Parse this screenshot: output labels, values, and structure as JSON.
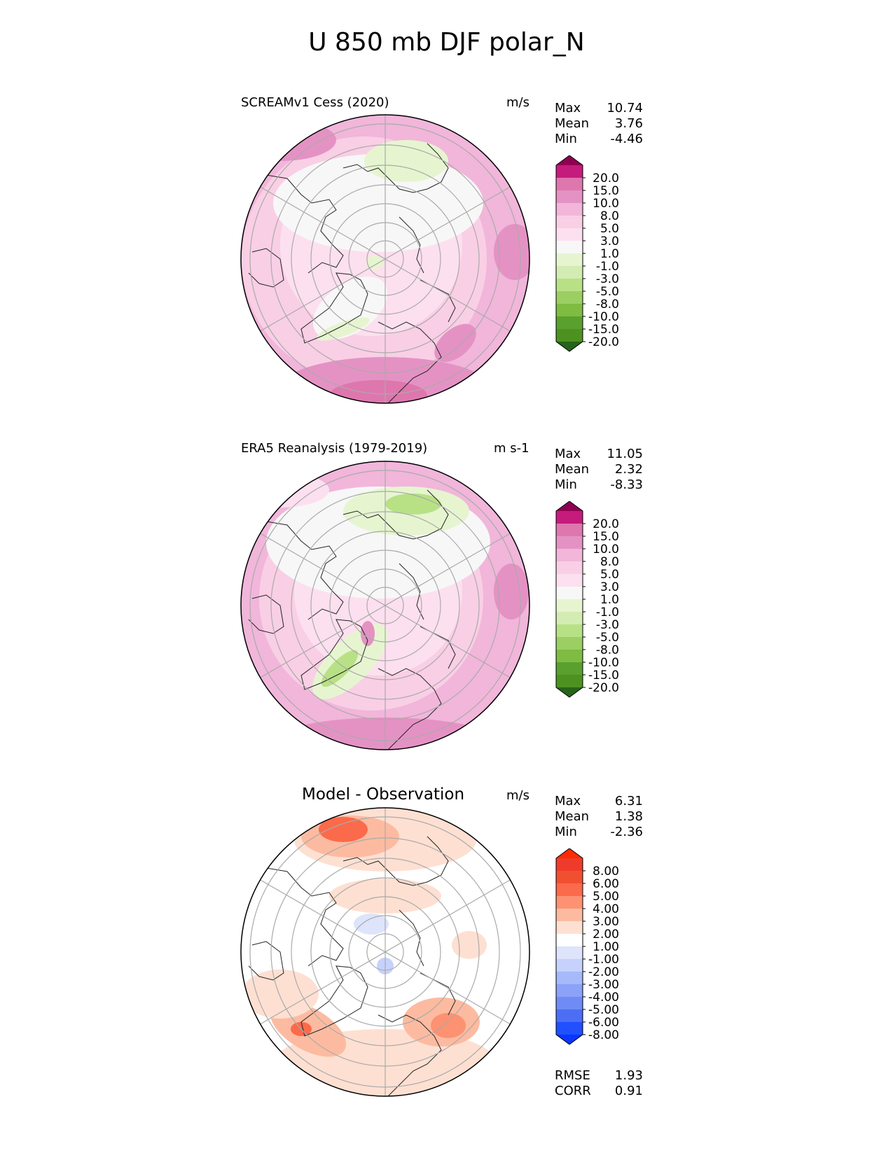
{
  "figure": {
    "title": "U 850 mb DJF polar_N"
  },
  "colors": {
    "pink": [
      "#f7f7f7",
      "#fde0ef",
      "#f9cfe5",
      "#f1b6da",
      "#e492c4",
      "#de77ae",
      "#c51b7d",
      "#8e0152"
    ],
    "green": [
      "#e6f5d0",
      "#d3ecb3",
      "#b8e186",
      "#9bcf63",
      "#7fbc41",
      "#5aa02f",
      "#4d9221",
      "#276419"
    ],
    "diff_pos": [
      "#fee0d2",
      "#fcbba1",
      "#fc9272",
      "#fb6a4a",
      "#f15030",
      "#ef3b2c",
      "#ff2a00"
    ],
    "diff_neg": [
      "#dde4fb",
      "#c6d2fb",
      "#a6b9fa",
      "#8ba2f8",
      "#6f8cf6",
      "#4c6ef5",
      "#2050ff",
      "#0a36ff"
    ]
  },
  "panels": [
    {
      "name": "SCREAMv1 Cess (2020)",
      "units": "m/s",
      "stats": [
        {
          "label": "Max",
          "value": "10.74"
        },
        {
          "label": "Mean",
          "value": "3.76"
        },
        {
          "label": "Min",
          "value": "-4.46"
        }
      ],
      "colorbar_ticks": [
        "20.0",
        "15.0",
        "10.0",
        "8.0",
        "5.0",
        "3.0",
        "1.0",
        "-1.0",
        "-3.0",
        "-5.0",
        "-8.0",
        "-10.0",
        "-15.0",
        "-20.0"
      ]
    },
    {
      "name": "ERA5 Reanalysis (1979-2019)",
      "units": "m s-1",
      "stats": [
        {
          "label": "Max",
          "value": "11.05"
        },
        {
          "label": "Mean",
          "value": "2.32"
        },
        {
          "label": "Min",
          "value": "-8.33"
        }
      ],
      "colorbar_ticks": [
        "20.0",
        "15.0",
        "10.0",
        "8.0",
        "5.0",
        "3.0",
        "1.0",
        "-1.0",
        "-3.0",
        "-5.0",
        "-8.0",
        "-10.0",
        "-15.0",
        "-20.0"
      ]
    },
    {
      "name": "Model - Observation",
      "units": "m/s",
      "stats": [
        {
          "label": "Max",
          "value": "6.31"
        },
        {
          "label": "Mean",
          "value": "1.38"
        },
        {
          "label": "Min",
          "value": "-2.36"
        }
      ],
      "metrics": [
        {
          "label": "RMSE",
          "value": "1.93"
        },
        {
          "label": "CORR",
          "value": "0.91"
        }
      ],
      "colorbar_ticks": [
        "8.00",
        "6.00",
        "5.00",
        "4.00",
        "3.00",
        "2.00",
        "1.00",
        "-1.00",
        "-2.00",
        "-3.00",
        "-4.00",
        "-5.00",
        "-6.00",
        "-8.00"
      ]
    }
  ],
  "chart_data": [
    {
      "type": "heatmap",
      "projection": "north polar stereographic",
      "title": "SCREAMv1 Cess (2020)",
      "units": "m/s",
      "contour_levels": [
        -20,
        -15,
        -10,
        -8,
        -5,
        -3,
        -1,
        1,
        3,
        5,
        8,
        10,
        15,
        20
      ],
      "max": 10.74,
      "mean": 3.76,
      "min": -4.46
    },
    {
      "type": "heatmap",
      "projection": "north polar stereographic",
      "title": "ERA5 Reanalysis (1979-2019)",
      "units": "m s-1",
      "contour_levels": [
        -20,
        -15,
        -10,
        -8,
        -5,
        -3,
        -1,
        1,
        3,
        5,
        8,
        10,
        15,
        20
      ],
      "max": 11.05,
      "mean": 2.32,
      "min": -8.33
    },
    {
      "type": "heatmap",
      "projection": "north polar stereographic",
      "title": "Model - Observation",
      "units": "m/s",
      "contour_levels": [
        -8,
        -6,
        -5,
        -4,
        -3,
        -2,
        -1,
        1,
        2,
        3,
        4,
        5,
        6,
        8
      ],
      "max": 6.31,
      "mean": 1.38,
      "min": -2.36,
      "rmse": 1.93,
      "corr": 0.91
    }
  ]
}
